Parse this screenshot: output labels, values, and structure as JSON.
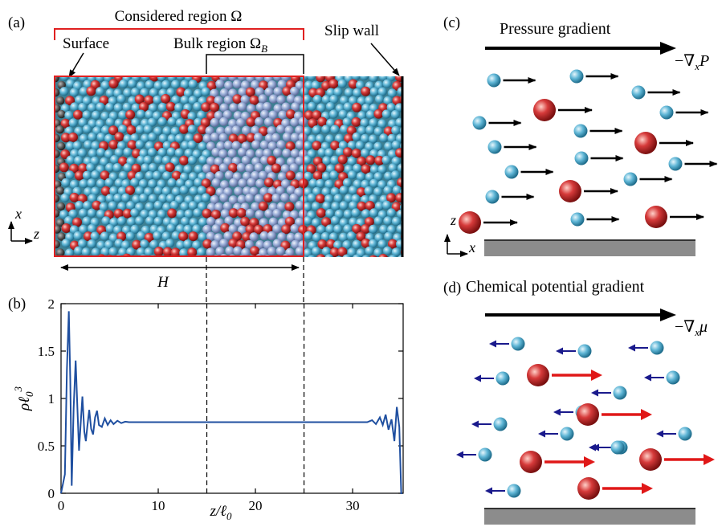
{
  "panels": {
    "a": {
      "label": "(a)",
      "considered_region": "Considered region Ω",
      "surface": "Surface",
      "bulk_region": "Bulk region Ω",
      "bulk_sub": "B",
      "slip_wall": "Slip wall",
      "axis_x": "x",
      "axis_z": "z",
      "width_label": "H"
    },
    "b": {
      "label": "(b)"
    },
    "c": {
      "label": "(c)",
      "title": "Pressure gradient",
      "force": "−∇",
      "force_sub": "x",
      "force_var": "P",
      "axis_z": "z",
      "axis_x": "x"
    },
    "d": {
      "label": "(d)",
      "title": "Chemical potential gradient",
      "force": "−∇",
      "force_sub": "x",
      "force_var": "μ"
    }
  },
  "colors": {
    "large_particle": "#d63a3a",
    "small_particle": "#5fb6d6",
    "bulk_particle": "#9aaed8",
    "surface_particle": "#555555",
    "profile_line": "#1f4fa0",
    "blue_arrow": "#1a1a8c",
    "red_arrow": "#e01818",
    "region_box": "#e02020",
    "wall": "#8c8c8c"
  },
  "chart_data": {
    "type": "line",
    "xlabel": "z/ℓ",
    "xlabel_sub": "0",
    "ylabel": "ρℓ",
    "ylabel_sub": "0",
    "ylabel_sup": "3",
    "xlim": [
      0,
      35.2
    ],
    "ylim": [
      0,
      2
    ],
    "xticks": [
      0,
      10,
      20,
      30
    ],
    "xtick_labels": [
      "0",
      "10",
      "20",
      "30"
    ],
    "yticks": [
      0,
      0.5,
      1,
      1.5,
      2
    ],
    "ytick_labels": [
      "0",
      "0.5",
      "1",
      "1.5",
      "2"
    ],
    "vlines": [
      15,
      25
    ],
    "series": [
      {
        "x": [
          0.0,
          0.4,
          0.6,
          0.8,
          0.95,
          1.1,
          1.3,
          1.5,
          1.7,
          1.85,
          2.0,
          2.2,
          2.4,
          2.55,
          2.7,
          2.9,
          3.1,
          3.3,
          3.5,
          3.7,
          3.9,
          4.2,
          4.5,
          4.8,
          5.1,
          5.4,
          5.8,
          6.2,
          6.6,
          7.0,
          8.0,
          10.0,
          15.0,
          20.0,
          25.0,
          30.0,
          31.5,
          32.0,
          32.4,
          32.8,
          33.1,
          33.4,
          33.7,
          34.0,
          34.3,
          34.55,
          34.8,
          35.0,
          35.1
        ],
        "y": [
          0.0,
          0.2,
          1.3,
          1.92,
          1.2,
          0.08,
          0.9,
          1.4,
          0.85,
          0.45,
          0.7,
          1.02,
          0.65,
          0.55,
          0.7,
          0.88,
          0.68,
          0.62,
          0.8,
          0.87,
          0.72,
          0.7,
          0.79,
          0.72,
          0.77,
          0.73,
          0.765,
          0.74,
          0.755,
          0.75,
          0.75,
          0.75,
          0.75,
          0.75,
          0.75,
          0.75,
          0.75,
          0.77,
          0.73,
          0.8,
          0.72,
          0.83,
          0.67,
          0.78,
          0.55,
          0.91,
          0.7,
          0.0,
          0.0
        ]
      }
    ]
  }
}
